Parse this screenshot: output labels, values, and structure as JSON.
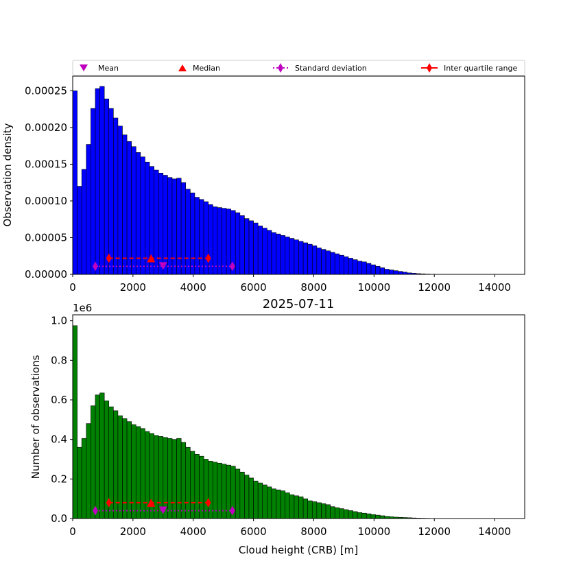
{
  "legend": {
    "mean_label": "Mean",
    "median_label": "Median",
    "std_label": "Standard deviation",
    "iqr_label": "Inter quartile range"
  },
  "colors": {
    "top_bars": "#0000ff",
    "bottom_bars": "#008000",
    "bar_edge": "#000000",
    "mean_marker": "#bf00bf",
    "median_marker": "#ff0000",
    "std_line": "#bf00bf",
    "iqr_line": "#ff0000"
  },
  "chart_data": [
    {
      "type": "bar",
      "title": "",
      "xlabel": "",
      "ylabel": "Observation density",
      "xlim": [
        0,
        15000
      ],
      "ylim": [
        0,
        0.00027
      ],
      "bin_width": 150,
      "x_ticks": [
        "0",
        "2000",
        "4000",
        "6000",
        "8000",
        "10000",
        "12000",
        "14000"
      ],
      "y_ticks": [
        "0.00000",
        "0.00005",
        "0.00010",
        "0.00015",
        "0.00020",
        "0.00025"
      ],
      "values": [
        0.00025,
        0.00012,
        0.000143,
        0.000177,
        0.000226,
        0.000253,
        0.000256,
        0.000239,
        0.000226,
        0.000213,
        0.000202,
        0.00019,
        0.000181,
        0.000174,
        0.000166,
        0.00016,
        0.000153,
        0.000147,
        0.000142,
        0.000138,
        0.000135,
        0.000132,
        0.00013,
        0.000131,
        0.000125,
        0.000116,
        0.000111,
        0.000105,
        0.000102,
        9.9e-05,
        9.5e-05,
        9.2e-05,
        9.1e-05,
        9e-05,
        8.9e-05,
        8.7e-05,
        8.4e-05,
        8e-05,
        7.6e-05,
        7.3e-05,
        7e-05,
        6.6e-05,
        6.3e-05,
        6e-05,
        5.7e-05,
        5.5e-05,
        5.3e-05,
        5.1e-05,
        4.9e-05,
        4.7e-05,
        4.5e-05,
        4.3e-05,
        4.1e-05,
        3.9e-05,
        3.6e-05,
        3.4e-05,
        3.2e-05,
        3e-05,
        2.8e-05,
        2.6e-05,
        2.4e-05,
        2.2e-05,
        2e-05,
        1.8e-05,
        1.7e-05,
        1.5e-05,
        1.3e-05,
        1.1e-05,
        9e-06,
        7e-06,
        6e-06,
        5e-06,
        4e-06,
        3e-06,
        2e-06,
        1.5e-06,
        1e-06,
        7e-07,
        4e-07,
        2e-07
      ],
      "stats": {
        "mean": 3000,
        "median": 2600,
        "std_range": [
          750,
          5300
        ],
        "iqr_range": [
          1200,
          4500
        ]
      },
      "legend": "top"
    },
    {
      "type": "bar",
      "title": "2025-07-11",
      "xlabel": "Cloud height (CRB) [m]",
      "ylabel": "Number of observations",
      "y_scale_label": "1e6",
      "xlim": [
        0,
        15000
      ],
      "ylim": [
        0,
        1.03
      ],
      "bin_width": 150,
      "x_ticks": [
        "0",
        "2000",
        "4000",
        "6000",
        "8000",
        "10000",
        "12000",
        "14000"
      ],
      "y_ticks": [
        "0.0",
        "0.2",
        "0.4",
        "0.6",
        "0.8",
        "1.0"
      ],
      "values": [
        0.975,
        0.36,
        0.405,
        0.48,
        0.57,
        0.625,
        0.635,
        0.595,
        0.565,
        0.545,
        0.52,
        0.505,
        0.49,
        0.475,
        0.465,
        0.455,
        0.44,
        0.43,
        0.42,
        0.415,
        0.41,
        0.405,
        0.4,
        0.405,
        0.385,
        0.36,
        0.34,
        0.325,
        0.315,
        0.3,
        0.29,
        0.285,
        0.28,
        0.275,
        0.27,
        0.265,
        0.25,
        0.235,
        0.22,
        0.205,
        0.19,
        0.18,
        0.17,
        0.16,
        0.15,
        0.145,
        0.14,
        0.13,
        0.12,
        0.115,
        0.11,
        0.1,
        0.09,
        0.085,
        0.08,
        0.075,
        0.07,
        0.06,
        0.055,
        0.05,
        0.045,
        0.04,
        0.035,
        0.03,
        0.027,
        0.024,
        0.02,
        0.017,
        0.014,
        0.011,
        0.009,
        0.007,
        0.006,
        0.005,
        0.004,
        0.003,
        0.002,
        0.0015,
        0.001,
        0.0005
      ],
      "stats": {
        "mean": 3000,
        "median": 2600,
        "std_range": [
          750,
          5300
        ],
        "iqr_range": [
          1200,
          4500
        ]
      }
    }
  ]
}
